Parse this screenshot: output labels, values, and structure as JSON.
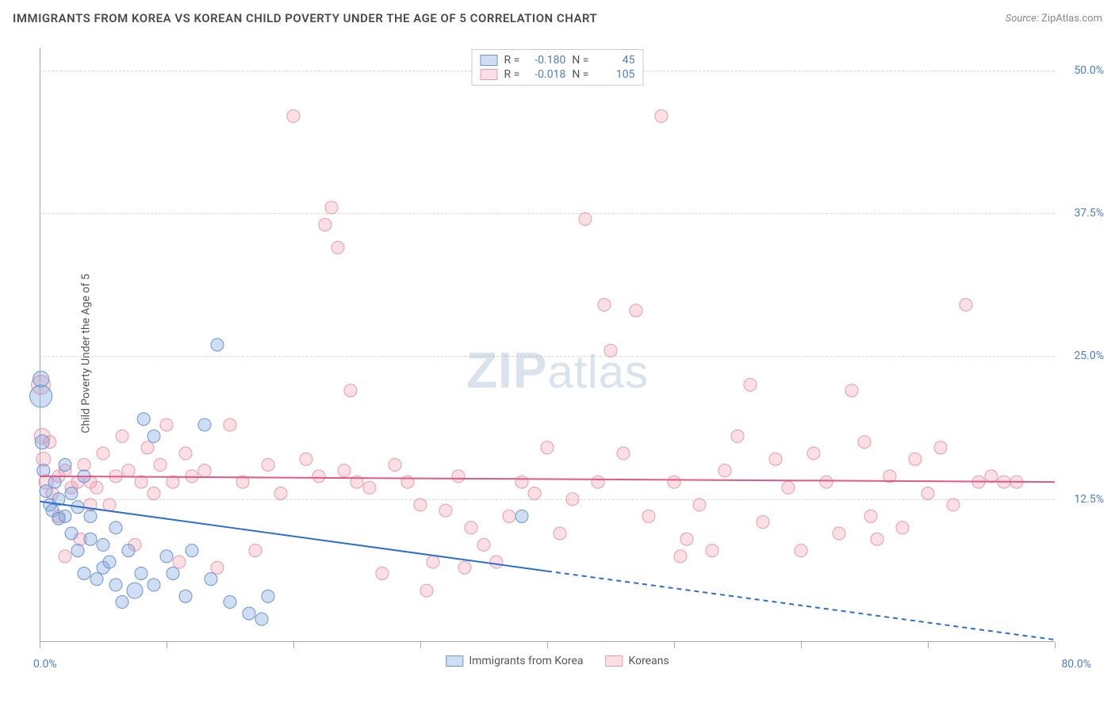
{
  "title": "IMMIGRANTS FROM KOREA VS KOREAN CHILD POVERTY UNDER THE AGE OF 5 CORRELATION CHART",
  "source_label": "Source:",
  "source_name": "ZipAtlas.com",
  "y_axis_label": "Child Poverty Under the Age of 5",
  "watermark_a": "ZIP",
  "watermark_b": "atlas",
  "chart": {
    "type": "scatter",
    "xlim": [
      0,
      80
    ],
    "ylim": [
      0,
      52
    ],
    "x_origin_label": "0.0%",
    "x_max_label": "80.0%",
    "x_ticks": [
      0,
      10,
      20,
      30,
      40,
      50,
      60,
      70,
      80
    ],
    "y_ticks": [
      {
        "v": 12.5,
        "label": "12.5%"
      },
      {
        "v": 25.0,
        "label": "25.0%"
      },
      {
        "v": 37.5,
        "label": "37.5%"
      },
      {
        "v": 50.0,
        "label": "50.0%"
      }
    ],
    "background_color": "#ffffff",
    "grid_color": "#d8d8d8",
    "axis_color": "#aaaaaa",
    "tick_label_color": "#4a7ec9",
    "series": {
      "blue": {
        "label": "Immigrants from Korea",
        "fill": "rgba(120,160,220,0.35)",
        "stroke": "#6a95d0",
        "line_color": "#2d6fd0",
        "line_width": 2,
        "r_value": "-0.180",
        "n_value": "45",
        "trend": {
          "x1": 0,
          "y1": 12.3,
          "x2_solid": 40,
          "y2_solid": 6.2,
          "x2_dash": 80,
          "y2_dash": 0.2
        },
        "points": [
          {
            "x": 0.1,
            "y": 21.5,
            "r": 14
          },
          {
            "x": 0.1,
            "y": 23.0,
            "r": 10
          },
          {
            "x": 0.2,
            "y": 17.5,
            "r": 9
          },
          {
            "x": 0.3,
            "y": 15.0,
            "r": 8
          },
          {
            "x": 0.5,
            "y": 13.2,
            "r": 8
          },
          {
            "x": 0.8,
            "y": 12.0,
            "r": 8
          },
          {
            "x": 1.0,
            "y": 11.5,
            "r": 8
          },
          {
            "x": 1.2,
            "y": 14.0,
            "r": 8
          },
          {
            "x": 1.5,
            "y": 10.8,
            "r": 8
          },
          {
            "x": 1.5,
            "y": 12.5,
            "r": 8
          },
          {
            "x": 2.0,
            "y": 11.0,
            "r": 8
          },
          {
            "x": 2.0,
            "y": 15.5,
            "r": 8
          },
          {
            "x": 2.5,
            "y": 13.0,
            "r": 8
          },
          {
            "x": 2.5,
            "y": 9.5,
            "r": 8
          },
          {
            "x": 3.0,
            "y": 11.8,
            "r": 8
          },
          {
            "x": 3.0,
            "y": 8.0,
            "r": 8
          },
          {
            "x": 3.5,
            "y": 14.5,
            "r": 8
          },
          {
            "x": 3.5,
            "y": 6.0,
            "r": 8
          },
          {
            "x": 4.0,
            "y": 9.0,
            "r": 8
          },
          {
            "x": 4.0,
            "y": 11.0,
            "r": 8
          },
          {
            "x": 4.5,
            "y": 5.5,
            "r": 8
          },
          {
            "x": 5.0,
            "y": 8.5,
            "r": 8
          },
          {
            "x": 5.0,
            "y": 6.5,
            "r": 8
          },
          {
            "x": 5.5,
            "y": 7.0,
            "r": 8
          },
          {
            "x": 6.0,
            "y": 5.0,
            "r": 8
          },
          {
            "x": 6.0,
            "y": 10.0,
            "r": 8
          },
          {
            "x": 6.5,
            "y": 3.5,
            "r": 8
          },
          {
            "x": 7.0,
            "y": 8.0,
            "r": 8
          },
          {
            "x": 7.5,
            "y": 4.5,
            "r": 10
          },
          {
            "x": 8.0,
            "y": 6.0,
            "r": 8
          },
          {
            "x": 8.2,
            "y": 19.5,
            "r": 8
          },
          {
            "x": 9.0,
            "y": 18.0,
            "r": 8
          },
          {
            "x": 9.0,
            "y": 5.0,
            "r": 8
          },
          {
            "x": 10.0,
            "y": 7.5,
            "r": 8
          },
          {
            "x": 10.5,
            "y": 6.0,
            "r": 8
          },
          {
            "x": 11.5,
            "y": 4.0,
            "r": 8
          },
          {
            "x": 12.0,
            "y": 8.0,
            "r": 8
          },
          {
            "x": 13.0,
            "y": 19.0,
            "r": 8
          },
          {
            "x": 13.5,
            "y": 5.5,
            "r": 8
          },
          {
            "x": 14.0,
            "y": 26.0,
            "r": 8
          },
          {
            "x": 15.0,
            "y": 3.5,
            "r": 8
          },
          {
            "x": 16.5,
            "y": 2.5,
            "r": 8
          },
          {
            "x": 17.5,
            "y": 2.0,
            "r": 8
          },
          {
            "x": 18.0,
            "y": 4.0,
            "r": 8
          },
          {
            "x": 38.0,
            "y": 11.0,
            "r": 8
          }
        ]
      },
      "pink": {
        "label": "Koreans",
        "fill": "rgba(240,150,170,0.30)",
        "stroke": "#e89ab0",
        "line_color": "#e05a85",
        "line_width": 2,
        "r_value": "-0.018",
        "n_value": "105",
        "trend": {
          "x1": 0,
          "y1": 14.5,
          "x2_solid": 80,
          "y2_solid": 14.0
        },
        "points": [
          {
            "x": 0.1,
            "y": 22.5,
            "r": 12
          },
          {
            "x": 0.2,
            "y": 18.0,
            "r": 10
          },
          {
            "x": 0.3,
            "y": 16.0,
            "r": 9
          },
          {
            "x": 0.5,
            "y": 14.0,
            "r": 9
          },
          {
            "x": 0.8,
            "y": 17.5,
            "r": 8
          },
          {
            "x": 1.0,
            "y": 13.0,
            "r": 8
          },
          {
            "x": 1.5,
            "y": 14.5,
            "r": 8
          },
          {
            "x": 1.5,
            "y": 11.0,
            "r": 8
          },
          {
            "x": 2.0,
            "y": 15.0,
            "r": 8
          },
          {
            "x": 2.0,
            "y": 7.5,
            "r": 8
          },
          {
            "x": 2.5,
            "y": 13.5,
            "r": 8
          },
          {
            "x": 3.0,
            "y": 14.0,
            "r": 8
          },
          {
            "x": 3.2,
            "y": 9.0,
            "r": 8
          },
          {
            "x": 3.5,
            "y": 15.5,
            "r": 8
          },
          {
            "x": 4.0,
            "y": 12.0,
            "r": 8
          },
          {
            "x": 4.0,
            "y": 14.0,
            "r": 8
          },
          {
            "x": 4.5,
            "y": 13.5,
            "r": 8
          },
          {
            "x": 5.0,
            "y": 16.5,
            "r": 8
          },
          {
            "x": 5.5,
            "y": 12.0,
            "r": 8
          },
          {
            "x": 6.0,
            "y": 14.5,
            "r": 8
          },
          {
            "x": 6.5,
            "y": 18.0,
            "r": 8
          },
          {
            "x": 7.0,
            "y": 15.0,
            "r": 8
          },
          {
            "x": 7.5,
            "y": 8.5,
            "r": 8
          },
          {
            "x": 8.0,
            "y": 14.0,
            "r": 8
          },
          {
            "x": 8.5,
            "y": 17.0,
            "r": 8
          },
          {
            "x": 9.0,
            "y": 13.0,
            "r": 8
          },
          {
            "x": 9.5,
            "y": 15.5,
            "r": 8
          },
          {
            "x": 10.0,
            "y": 19.0,
            "r": 8
          },
          {
            "x": 10.5,
            "y": 14.0,
            "r": 8
          },
          {
            "x": 11.0,
            "y": 7.0,
            "r": 8
          },
          {
            "x": 11.5,
            "y": 16.5,
            "r": 8
          },
          {
            "x": 12.0,
            "y": 14.5,
            "r": 8
          },
          {
            "x": 13.0,
            "y": 15.0,
            "r": 8
          },
          {
            "x": 14.0,
            "y": 6.5,
            "r": 8
          },
          {
            "x": 15.0,
            "y": 19.0,
            "r": 8
          },
          {
            "x": 16.0,
            "y": 14.0,
            "r": 8
          },
          {
            "x": 17.0,
            "y": 8.0,
            "r": 8
          },
          {
            "x": 18.0,
            "y": 15.5,
            "r": 8
          },
          {
            "x": 19.0,
            "y": 13.0,
            "r": 8
          },
          {
            "x": 20.0,
            "y": 46.0,
            "r": 8
          },
          {
            "x": 21.0,
            "y": 16.0,
            "r": 8
          },
          {
            "x": 22.0,
            "y": 14.5,
            "r": 8
          },
          {
            "x": 22.5,
            "y": 36.5,
            "r": 8
          },
          {
            "x": 23.0,
            "y": 38.0,
            "r": 8
          },
          {
            "x": 23.5,
            "y": 34.5,
            "r": 8
          },
          {
            "x": 24.0,
            "y": 15.0,
            "r": 8
          },
          {
            "x": 24.5,
            "y": 22.0,
            "r": 8
          },
          {
            "x": 25.0,
            "y": 14.0,
            "r": 8
          },
          {
            "x": 26.0,
            "y": 13.5,
            "r": 8
          },
          {
            "x": 27.0,
            "y": 6.0,
            "r": 8
          },
          {
            "x": 28.0,
            "y": 15.5,
            "r": 8
          },
          {
            "x": 29.0,
            "y": 14.0,
            "r": 8
          },
          {
            "x": 30.0,
            "y": 12.0,
            "r": 8
          },
          {
            "x": 30.5,
            "y": 4.5,
            "r": 8
          },
          {
            "x": 31.0,
            "y": 7.0,
            "r": 8
          },
          {
            "x": 32.0,
            "y": 11.5,
            "r": 8
          },
          {
            "x": 33.0,
            "y": 14.5,
            "r": 8
          },
          {
            "x": 33.5,
            "y": 6.5,
            "r": 8
          },
          {
            "x": 34.0,
            "y": 10.0,
            "r": 8
          },
          {
            "x": 35.0,
            "y": 8.5,
            "r": 8
          },
          {
            "x": 36.0,
            "y": 7.0,
            "r": 8
          },
          {
            "x": 37.0,
            "y": 11.0,
            "r": 8
          },
          {
            "x": 38.0,
            "y": 14.0,
            "r": 8
          },
          {
            "x": 39.0,
            "y": 13.0,
            "r": 8
          },
          {
            "x": 40.0,
            "y": 17.0,
            "r": 8
          },
          {
            "x": 41.0,
            "y": 9.5,
            "r": 8
          },
          {
            "x": 42.0,
            "y": 12.5,
            "r": 8
          },
          {
            "x": 43.0,
            "y": 37.0,
            "r": 8
          },
          {
            "x": 44.0,
            "y": 14.0,
            "r": 8
          },
          {
            "x": 44.5,
            "y": 29.5,
            "r": 8
          },
          {
            "x": 45.0,
            "y": 25.5,
            "r": 8
          },
          {
            "x": 46.0,
            "y": 16.5,
            "r": 8
          },
          {
            "x": 47.0,
            "y": 29.0,
            "r": 8
          },
          {
            "x": 48.0,
            "y": 11.0,
            "r": 8
          },
          {
            "x": 49.0,
            "y": 46.0,
            "r": 8
          },
          {
            "x": 50.0,
            "y": 14.0,
            "r": 8
          },
          {
            "x": 50.5,
            "y": 7.5,
            "r": 8
          },
          {
            "x": 51.0,
            "y": 9.0,
            "r": 8
          },
          {
            "x": 52.0,
            "y": 12.0,
            "r": 8
          },
          {
            "x": 53.0,
            "y": 8.0,
            "r": 8
          },
          {
            "x": 54.0,
            "y": 15.0,
            "r": 8
          },
          {
            "x": 55.0,
            "y": 18.0,
            "r": 8
          },
          {
            "x": 56.0,
            "y": 22.5,
            "r": 8
          },
          {
            "x": 57.0,
            "y": 10.5,
            "r": 8
          },
          {
            "x": 58.0,
            "y": 16.0,
            "r": 8
          },
          {
            "x": 59.0,
            "y": 13.5,
            "r": 8
          },
          {
            "x": 60.0,
            "y": 8.0,
            "r": 8
          },
          {
            "x": 61.0,
            "y": 16.5,
            "r": 8
          },
          {
            "x": 62.0,
            "y": 14.0,
            "r": 8
          },
          {
            "x": 63.0,
            "y": 9.5,
            "r": 8
          },
          {
            "x": 64.0,
            "y": 22.0,
            "r": 8
          },
          {
            "x": 65.0,
            "y": 17.5,
            "r": 8
          },
          {
            "x": 65.5,
            "y": 11.0,
            "r": 8
          },
          {
            "x": 66.0,
            "y": 9.0,
            "r": 8
          },
          {
            "x": 67.0,
            "y": 14.5,
            "r": 8
          },
          {
            "x": 68.0,
            "y": 10.0,
            "r": 8
          },
          {
            "x": 69.0,
            "y": 16.0,
            "r": 8
          },
          {
            "x": 70.0,
            "y": 13.0,
            "r": 8
          },
          {
            "x": 71.0,
            "y": 17.0,
            "r": 8
          },
          {
            "x": 72.0,
            "y": 12.0,
            "r": 8
          },
          {
            "x": 73.0,
            "y": 29.5,
            "r": 8
          },
          {
            "x": 74.0,
            "y": 14.0,
            "r": 8
          },
          {
            "x": 75.0,
            "y": 14.5,
            "r": 8
          },
          {
            "x": 76.0,
            "y": 14.0,
            "r": 8
          },
          {
            "x": 77.0,
            "y": 14.0,
            "r": 8
          }
        ]
      }
    }
  },
  "legend_top": {
    "r_label": "R =",
    "n_label": "N ="
  }
}
